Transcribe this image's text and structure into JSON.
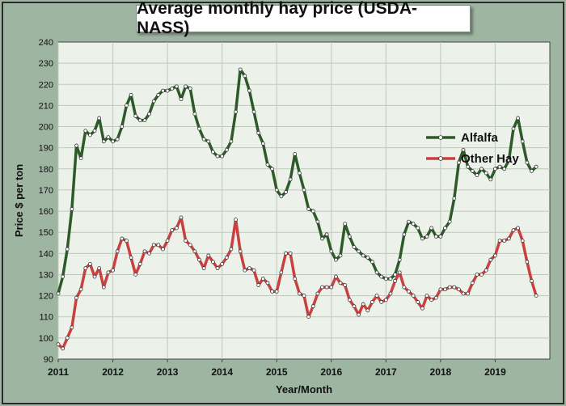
{
  "chart_data": {
    "type": "line",
    "title": "Average monthly hay price (USDA-NASS)",
    "xlabel": "Year/Month",
    "ylabel": "Price $ per ton",
    "ylim": [
      90,
      240
    ],
    "yticks": [
      90,
      100,
      110,
      120,
      130,
      140,
      150,
      160,
      170,
      180,
      190,
      200,
      210,
      220,
      230,
      240
    ],
    "xlim": [
      "2011-01",
      "2020-01"
    ],
    "xticks": [
      "2011",
      "2012",
      "2013",
      "2014",
      "2015",
      "2016",
      "2017",
      "2018",
      "2019"
    ],
    "grid": true,
    "legend_position": "right",
    "series": [
      {
        "name": "Alfalfa",
        "color": "#2e5a2a",
        "values": [
          121,
          129,
          142,
          161,
          191,
          185,
          198,
          196,
          198,
          204,
          193,
          195,
          193,
          194,
          200,
          210,
          215,
          205,
          203,
          203,
          206,
          212,
          215,
          217,
          217,
          218,
          219,
          213,
          219,
          218,
          206,
          199,
          194,
          193,
          188,
          186,
          186,
          189,
          193,
          207,
          227,
          224,
          217,
          207,
          197,
          192,
          182,
          180,
          170,
          167,
          169,
          175,
          187,
          178,
          170,
          161,
          160,
          155,
          147,
          149,
          141,
          137,
          139,
          154,
          148,
          143,
          141,
          139,
          138,
          136,
          131,
          129,
          128,
          128,
          130,
          137,
          149,
          155,
          154,
          152,
          147,
          148,
          152,
          148,
          148,
          152,
          155,
          166,
          183,
          189,
          181,
          179,
          177,
          180,
          178,
          175,
          180,
          181,
          180,
          184,
          199,
          204,
          193,
          183,
          179,
          181
        ]
      },
      {
        "name": "Other Hay",
        "color": "#c94040",
        "values": [
          97,
          95,
          100,
          105,
          119,
          123,
          133,
          135,
          129,
          133,
          124,
          131,
          132,
          141,
          147,
          146,
          138,
          130,
          135,
          141,
          140,
          144,
          144,
          142,
          146,
          151,
          152,
          157,
          146,
          144,
          141,
          137,
          133,
          139,
          136,
          133,
          135,
          138,
          142,
          156,
          141,
          132,
          133,
          132,
          125,
          128,
          126,
          122,
          122,
          131,
          140,
          140,
          128,
          121,
          120,
          110,
          115,
          121,
          124,
          124,
          124,
          129,
          126,
          125,
          118,
          115,
          111,
          116,
          113,
          117,
          120,
          117,
          118,
          121,
          127,
          131,
          124,
          122,
          120,
          117,
          114,
          120,
          118,
          119,
          123,
          123,
          124,
          124,
          123,
          121,
          121,
          126,
          130,
          130,
          132,
          137,
          139,
          146,
          146,
          147,
          151,
          152,
          146,
          136,
          127,
          120
        ]
      }
    ]
  }
}
